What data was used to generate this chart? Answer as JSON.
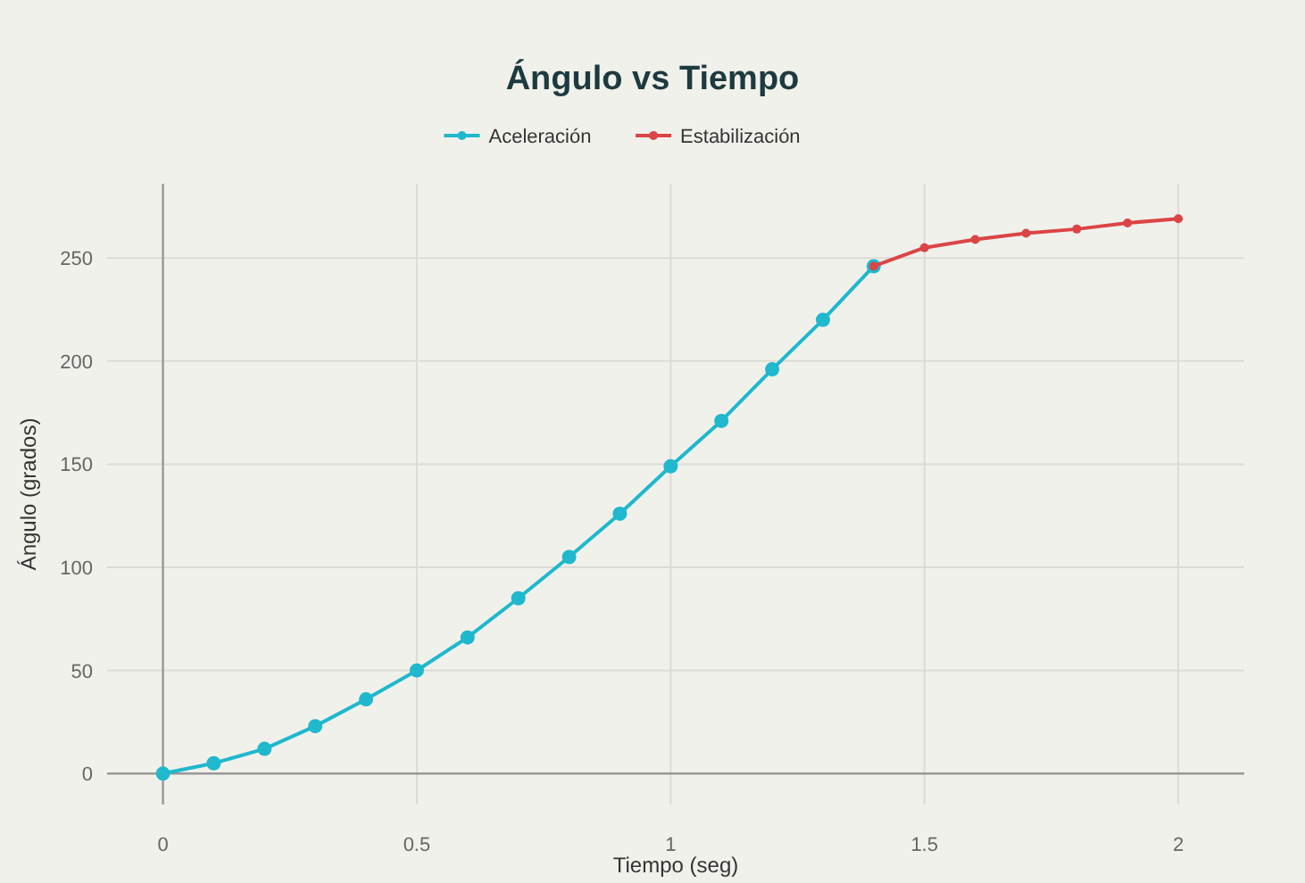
{
  "chart_data": {
    "type": "line",
    "title": "Ángulo vs Tiempo",
    "xlabel": "Tiempo (seg)",
    "ylabel": "Ángulo (grados)",
    "xlim": [
      -0.11,
      2.13
    ],
    "xticks": [
      0,
      0.5,
      1,
      1.5,
      2
    ],
    "ylim": [
      -15,
      286
    ],
    "yticks": [
      0,
      50,
      100,
      150,
      200,
      250
    ],
    "grid": true,
    "legend": "top",
    "marker": "circle",
    "line_style": "solid",
    "series": [
      {
        "name": "Aceleración",
        "color": "#1fb8cd",
        "x": [
          0,
          0.1,
          0.2,
          0.3,
          0.4,
          0.5,
          0.6,
          0.7,
          0.8,
          0.9,
          1.0,
          1.1,
          1.2,
          1.3,
          1.4
        ],
        "values": [
          0,
          5,
          12,
          23,
          36,
          50,
          66,
          85,
          105,
          126,
          149,
          171,
          196,
          220,
          246
        ]
      },
      {
        "name": "Estabilización",
        "color": "#db4545",
        "x": [
          1.4,
          1.5,
          1.6,
          1.7,
          1.8,
          1.9,
          2.0
        ],
        "values": [
          246,
          255,
          259,
          262,
          264,
          267,
          269
        ]
      }
    ]
  }
}
